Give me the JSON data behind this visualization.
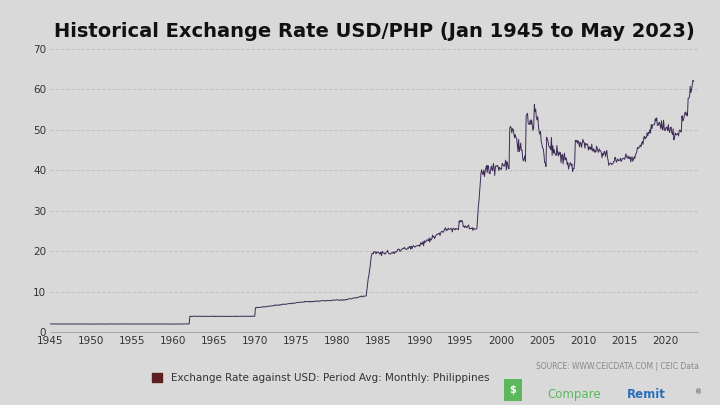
{
  "title": "Historical Exchange Rate USD/PHP (Jan 1945 to May 2023)",
  "title_fontsize": 14,
  "legend_label": "Exchange Rate against USD: Period Avg: Monthly: Philippines",
  "source_text": "SOURCE: WWW.CEICDATA.COM | CEIC Data",
  "line_color": "#3d2b56",
  "legend_color": "#5c1f1f",
  "background_color": "#d9d9d9",
  "plot_bg_color": "#d9d9d9",
  "ylim": [
    0,
    70
  ],
  "yticks": [
    0,
    10,
    20,
    30,
    40,
    50,
    60,
    70
  ],
  "xlim_start": 1945,
  "xlim_end": 2024,
  "xticks": [
    1945,
    1950,
    1955,
    1960,
    1965,
    1970,
    1975,
    1980,
    1985,
    1990,
    1995,
    2000,
    2005,
    2010,
    2015,
    2020
  ],
  "grid_color": "#bbbbbb",
  "grid_style": "--",
  "grid_alpha": 0.8,
  "watermark_compare": "Compare",
  "watermark_remit": "Remit",
  "watermark_color_compare": "#5cb85c",
  "watermark_color_remit": "#2a6ebb",
  "source_color": "#888888"
}
